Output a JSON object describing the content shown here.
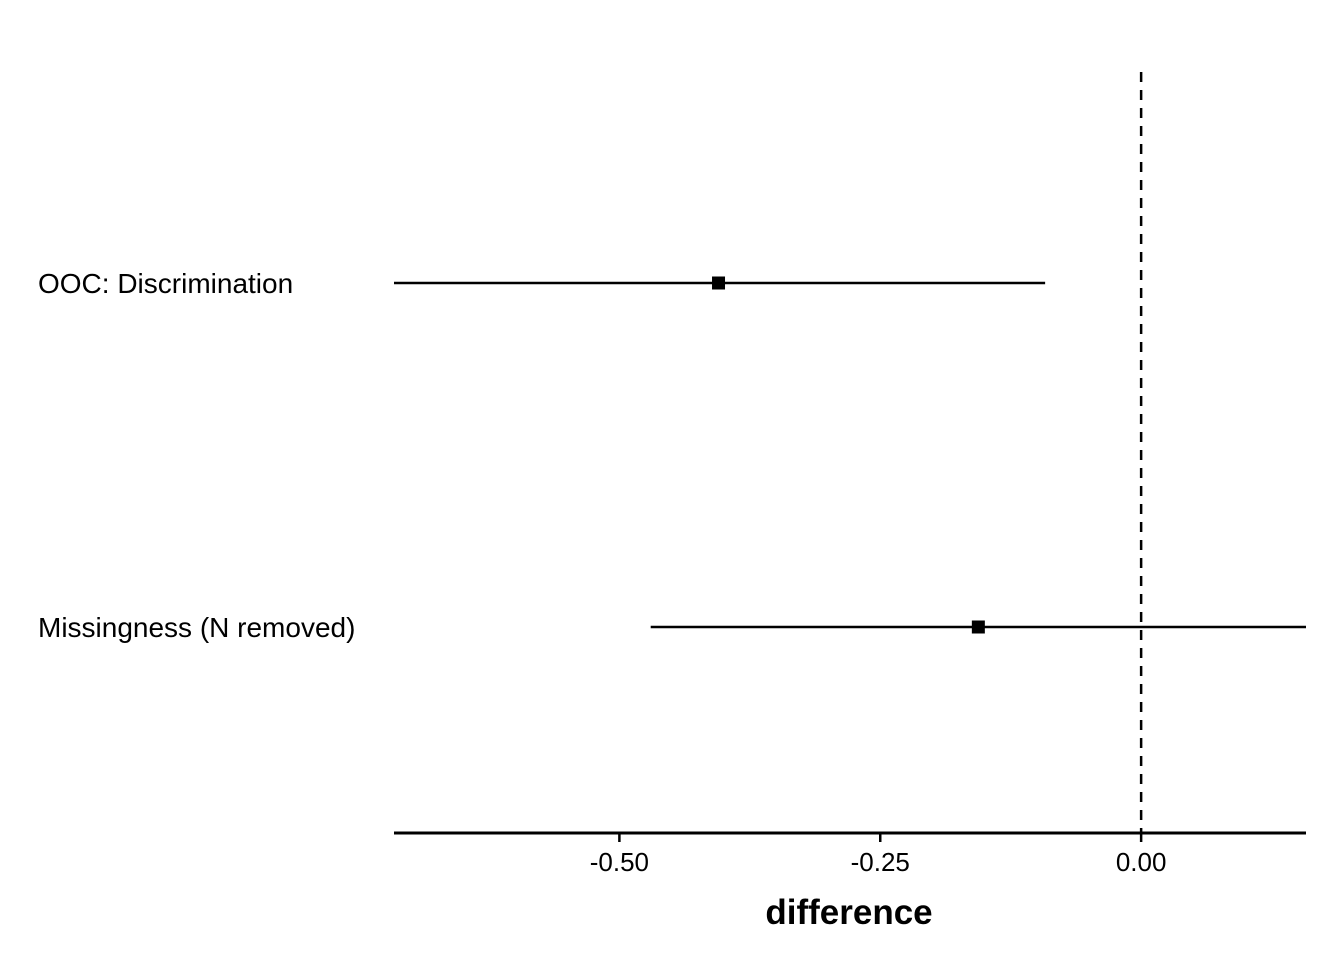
{
  "chart_data": {
    "type": "forest",
    "categories": [
      "OOC: Discrimination",
      "Missingness (N removed)"
    ],
    "points": [
      {
        "label": "OOC: Discrimination",
        "estimate": -0.405,
        "lower": -0.716,
        "upper": -0.092
      },
      {
        "label": "Missingness (N removed)",
        "estimate": -0.156,
        "lower": -0.47,
        "upper": 0.158
      }
    ],
    "reference_line": 0.0,
    "reference_line_style": "dashed",
    "xlabel": "difference",
    "ylabel": "",
    "xlim": [
      -0.716,
      0.158
    ],
    "xticks": [
      -0.5,
      -0.25,
      0.0
    ],
    "xtick_labels": [
      "-0.50",
      "-0.25",
      "0.00"
    ],
    "grid": false,
    "colors": {
      "marks": "#000000",
      "background": "#ffffff"
    }
  }
}
